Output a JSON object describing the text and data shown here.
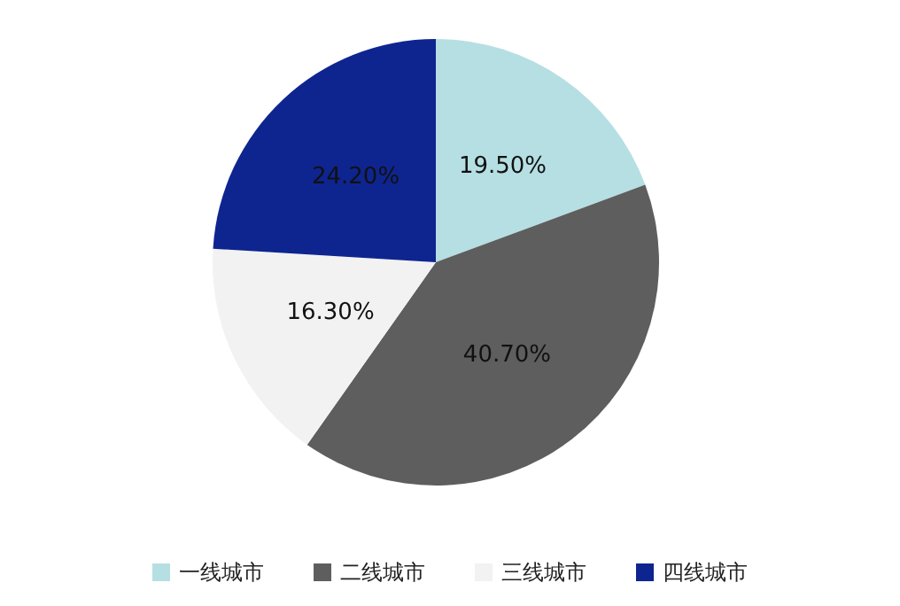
{
  "chart_data": {
    "type": "pie",
    "categories": [
      "一线城市",
      "二线城市",
      "三线城市",
      "四线城市"
    ],
    "values": [
      19.5,
      40.7,
      16.3,
      24.2
    ],
    "colors": [
      "#b5dfe3",
      "#5e5e5e",
      "#f2f2f2",
      "#0e2590"
    ],
    "value_labels": [
      "19.50%",
      "40.70%",
      "16.30%",
      "24.20%"
    ],
    "legend": "bottom"
  }
}
